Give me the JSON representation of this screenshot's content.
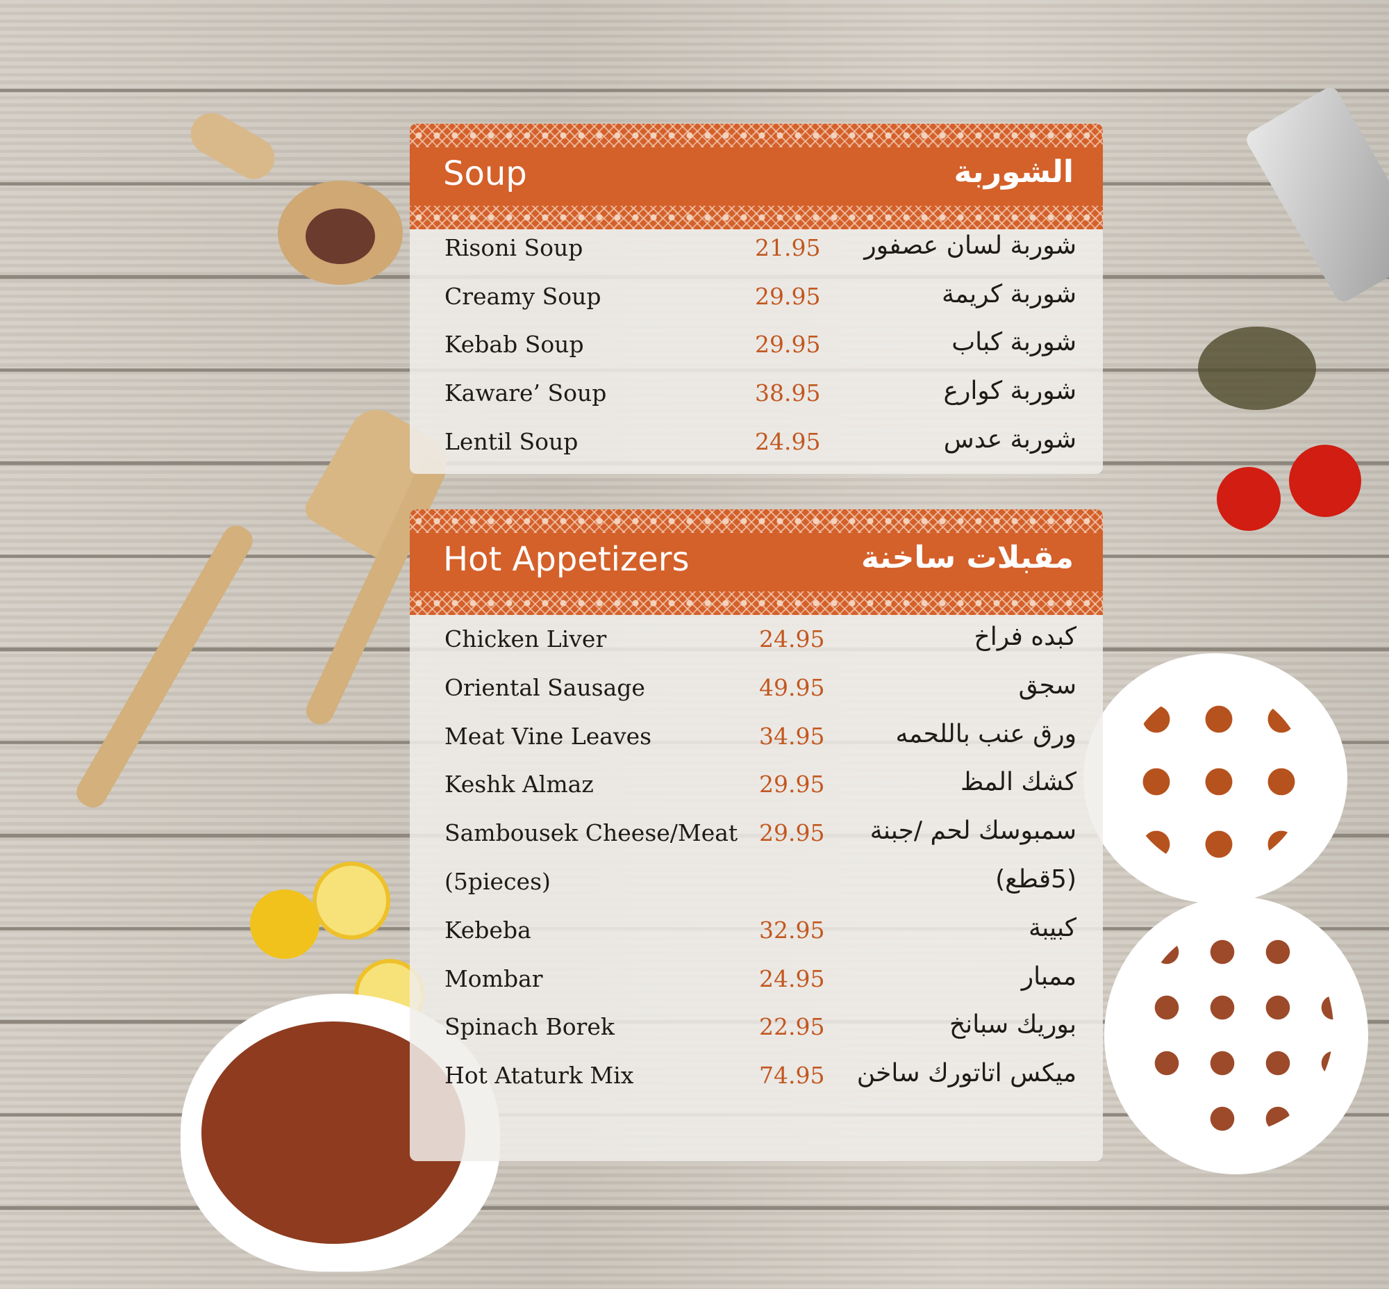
{
  "colors": {
    "accent": "#d4602a",
    "price": "#c2571f"
  },
  "sections": [
    {
      "title_en": "Soup",
      "title_ar": "الشوربة",
      "items": [
        {
          "en": "Risoni Soup",
          "price": "21.95",
          "ar": "شوربة لسان عصفور"
        },
        {
          "en": "Creamy Soup",
          "price": "29.95",
          "ar": "شوربة كريمة"
        },
        {
          "en": "Kebab Soup",
          "price": "29.95",
          "ar": "شوربة كباب"
        },
        {
          "en": "Kaware’ Soup",
          "price": "38.95",
          "ar": "شوربة كوارع"
        },
        {
          "en": "Lentil Soup",
          "price": "24.95",
          "ar": "شوربة عدس"
        }
      ]
    },
    {
      "title_en": "Hot Appetizers",
      "title_ar": "مقبلات ساخنة",
      "items": [
        {
          "en": "Chicken Liver",
          "price": "24.95",
          "ar": "كبده فراخ"
        },
        {
          "en": "Oriental Sausage",
          "price": "49.95",
          "ar": "سجق"
        },
        {
          "en": "Meat Vine Leaves",
          "price": "34.95",
          "ar": "ورق عنب باللحمه"
        },
        {
          "en": "Keshk Almaz",
          "price": "29.95",
          "ar": "كشك المظ"
        },
        {
          "en": "Sambousek Cheese/Meat",
          "price": "29.95",
          "ar": "سمبوسك لحم /جبنة"
        },
        {
          "en": "(5pieces)",
          "price": "",
          "ar": "(5قطع)"
        },
        {
          "en": "Kebeba",
          "price": "32.95",
          "ar": "كبيبة"
        },
        {
          "en": "Mombar",
          "price": "24.95",
          "ar": "ممبار"
        },
        {
          "en": "Spinach Borek",
          "price": "22.95",
          "ar": "بوريك سبانخ"
        },
        {
          "en": "Hot Ataturk Mix",
          "price": "74.95",
          "ar": "ميكس اتاتورك ساخن"
        }
      ]
    }
  ]
}
